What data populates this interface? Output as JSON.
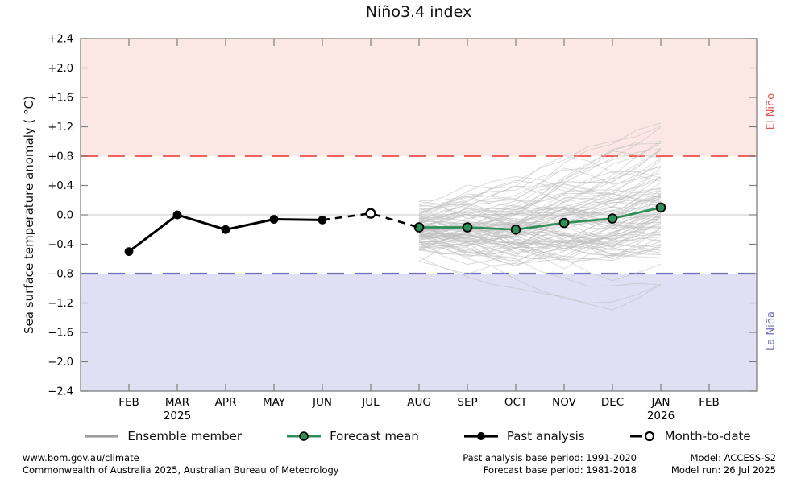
{
  "title": "Niño3.4 index",
  "y_axis_label": "Sea surface temperature anomaly ( °C)",
  "band_labels": {
    "el_nino": "El Niño",
    "la_nina": "La Niña"
  },
  "colors": {
    "el_nino_band": "#fbe8e5",
    "la_nina_band": "#e0dff4",
    "el_nino_line": "#f1605a",
    "la_nina_line": "#7070bd",
    "el_nino_text": "#e0534f",
    "la_nina_text": "#7070b8",
    "forecast_green": "#2e8f57",
    "ensemble_gray": "#bdbdbd",
    "zero_line": "#c9c9c9",
    "axis": "#7f7f7f",
    "past_black": "#000000"
  },
  "chart_data": {
    "type": "line",
    "title": "Niño3.4 index",
    "xlabel": "",
    "ylabel": "Sea surface temperature anomaly ( °C)",
    "ylim": [
      -2.4,
      2.4
    ],
    "grid": "zero-line only",
    "legend_position": "below-chart",
    "categories": [
      "FEB",
      "MAR",
      "APR",
      "MAY",
      "JUN",
      "JUL",
      "AUG",
      "SEP",
      "OCT",
      "NOV",
      "DEC",
      "JAN",
      "FEB"
    ],
    "year_labels": [
      {
        "month_index": 1,
        "label": "2025"
      },
      {
        "month_index": 11,
        "label": "2026"
      }
    ],
    "yticks": [
      {
        "v": 2.4,
        "label": "+2.4"
      },
      {
        "v": 2.0,
        "label": "+2.0"
      },
      {
        "v": 1.6,
        "label": "+1.6"
      },
      {
        "v": 1.2,
        "label": "+1.2"
      },
      {
        "v": 0.8,
        "label": "+0.8"
      },
      {
        "v": 0.4,
        "label": "+0.4"
      },
      {
        "v": 0.0,
        "label": "0.0"
      },
      {
        "v": -0.4,
        "label": "−0.4"
      },
      {
        "v": -0.8,
        "label": "−0.8"
      },
      {
        "v": -1.2,
        "label": "−1.2"
      },
      {
        "v": -1.6,
        "label": "−1.6"
      },
      {
        "v": -2.0,
        "label": "−2.0"
      },
      {
        "v": -2.4,
        "label": "−2.4"
      }
    ],
    "thresholds": {
      "el_nino": 0.8,
      "la_nina": -0.8
    },
    "series": {
      "past_analysis": {
        "name": "Past analysis",
        "x_index": [
          0,
          1,
          2,
          3,
          4
        ],
        "values": [
          -0.5,
          0.0,
          -0.2,
          -0.06,
          -0.07
        ]
      },
      "month_to_date": {
        "name": "Month-to-date",
        "x_index": [
          5
        ],
        "values": [
          0.02
        ]
      },
      "forecast_mean": {
        "name": "Forecast mean",
        "x_index": [
          6,
          7,
          8,
          9,
          10,
          11
        ],
        "values": [
          -0.17,
          -0.17,
          -0.2,
          -0.11,
          -0.05,
          0.1
        ]
      },
      "ensemble": {
        "name": "Ensemble member",
        "count": 99,
        "x_index": [
          6,
          7,
          8,
          9,
          10,
          11
        ],
        "envelope_min": [
          -0.65,
          -0.9,
          -1.0,
          -1.35,
          -1.3,
          -0.95
        ],
        "envelope_max": [
          0.35,
          0.6,
          0.85,
          1.0,
          1.1,
          1.25
        ]
      }
    }
  },
  "legend": {
    "items": [
      {
        "label": "Ensemble member"
      },
      {
        "label": "Forecast mean"
      },
      {
        "label": "Past analysis"
      },
      {
        "label": "Month-to-date"
      }
    ]
  },
  "footer": {
    "site": "www.bom.gov.au/climate",
    "copyright": "Commonwealth of Australia 2025, Australian Bureau of Meteorology",
    "past_base": "Past analysis base period: 1991-2020",
    "forecast_base": "Forecast base period: 1981-2018",
    "model": "Model: ACCESS-S2",
    "model_run": "Model run: 26 Jul 2025"
  }
}
